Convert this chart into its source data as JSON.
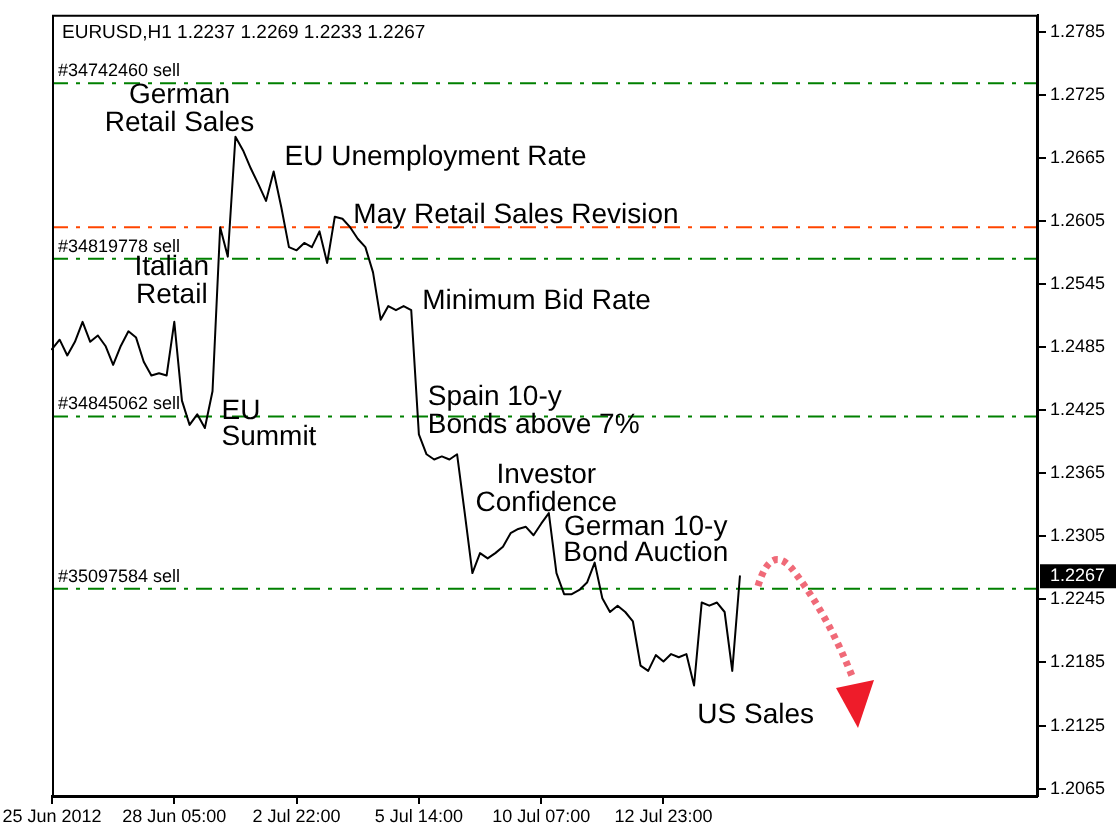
{
  "chart_data": {
    "type": "line",
    "title": "EURUSD,H1 1.2237 1.2269 1.2233 1.2267",
    "categories": [
      "25 Jun 2012",
      null,
      null,
      null,
      null,
      null,
      null,
      null,
      null,
      null,
      null,
      null,
      null,
      null,
      null,
      null,
      "28 Jun 05:00",
      null,
      null,
      null,
      null,
      null,
      null,
      null,
      null,
      null,
      null,
      null,
      null,
      null,
      null,
      null,
      "2 Jul 22:00",
      null,
      null,
      null,
      null,
      null,
      null,
      null,
      null,
      null,
      null,
      null,
      null,
      null,
      null,
      null,
      "5 Jul 14:00",
      null,
      null,
      null,
      null,
      null,
      null,
      null,
      null,
      null,
      null,
      null,
      null,
      null,
      null,
      null,
      "10 Jul 07:00",
      null,
      null,
      null,
      null,
      null,
      null,
      null,
      null,
      null,
      null,
      null,
      null,
      null,
      null,
      null,
      "12 Jul 23:00",
      null,
      null,
      null,
      null,
      null,
      null,
      null,
      null,
      null,
      null,
      null,
      null,
      null,
      null,
      null,
      null,
      null,
      null,
      null,
      null,
      null,
      null,
      null,
      null,
      null,
      null,
      null,
      null,
      null,
      null,
      null,
      null,
      null,
      null,
      null,
      null,
      null,
      null,
      null,
      null,
      null,
      null,
      null,
      null,
      null,
      null,
      null,
      null,
      null
    ],
    "values": [
      1.2483,
      1.2492,
      1.2477,
      1.249,
      1.2509,
      1.249,
      1.2496,
      1.2486,
      1.2468,
      1.2486,
      1.25,
      1.2494,
      1.2471,
      1.2458,
      1.246,
      1.2458,
      1.2509,
      1.2434,
      1.2411,
      1.2421,
      1.2408,
      1.2443,
      1.2599,
      1.2571,
      1.2685,
      1.2672,
      1.2655,
      1.264,
      1.2624,
      1.2652,
      1.2618,
      1.258,
      1.2577,
      1.2584,
      1.258,
      1.2595,
      1.2565,
      1.2609,
      1.2607,
      1.2599,
      1.2588,
      1.258,
      1.2556,
      1.2511,
      1.2524,
      1.252,
      1.2524,
      1.252,
      1.2402,
      1.2383,
      1.2378,
      1.2381,
      1.2378,
      1.2383,
      1.2327,
      1.227,
      1.2289,
      1.2284,
      1.2289,
      1.2295,
      1.2308,
      1.2312,
      1.2314,
      1.2306,
      1.2317,
      1.2327,
      1.227,
      1.225,
      1.225,
      1.2254,
      1.2261,
      1.228,
      1.2246,
      1.2233,
      1.2239,
      1.2233,
      1.2224,
      1.2182,
      1.2177,
      1.2192,
      1.2186,
      1.2193,
      1.219,
      1.2193,
      1.2163,
      1.2242,
      1.2239,
      1.2242,
      1.2233,
      1.2177,
      1.2267,
      null,
      null,
      null,
      null,
      null,
      null,
      null,
      null,
      null,
      null,
      null,
      null,
      null,
      null,
      null,
      null,
      null,
      null,
      null,
      null,
      null,
      null,
      null,
      null,
      null,
      null,
      null,
      null,
      null,
      null,
      null,
      null,
      null,
      null,
      null,
      null,
      null,
      null,
      null
    ],
    "color": "#000000",
    "ylim": [
      1.2058,
      1.2801
    ],
    "yticks": [
      1.2065,
      1.2125,
      1.2185,
      1.2245,
      1.2305,
      1.2365,
      1.2425,
      1.2485,
      1.2545,
      1.2605,
      1.2665,
      1.2725,
      1.2785
    ],
    "ref_lines": [
      {
        "axis": "y",
        "value": 1.2736,
        "label": "#34742460 sell",
        "color": "#008000",
        "line_style": "dashed"
      },
      {
        "axis": "y",
        "value": 1.2599,
        "color": "#ff4500",
        "line_style": "dashed"
      },
      {
        "axis": "y",
        "value": 1.2569,
        "label": "#34819778 sell",
        "color": "#008000",
        "line_style": "dashed"
      },
      {
        "axis": "y",
        "value": 1.2419,
        "label": "#34845062 sell",
        "color": "#008000",
        "line_style": "dashed"
      },
      {
        "axis": "y",
        "value": 1.2255,
        "label": "#35097584 sell",
        "color": "#008000",
        "line_style": "dashed"
      }
    ],
    "annotations": [
      "German Retail Sales",
      "EU Unemployment Rate",
      "May Retail Sales Revision",
      "Italian Retail",
      "Minimum Bid Rate",
      "EU Summit",
      "Spain 10-y Bonds above 7%",
      "Investor Confidence",
      "German 10-y Bond Auction",
      "US Sales",
      {
        "text": "1.2267",
        "y": 1.2267
      }
    ]
  }
}
